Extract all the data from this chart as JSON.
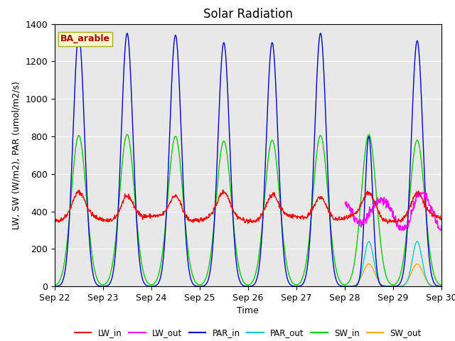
{
  "title": "Solar Radiation",
  "ylabel": "LW, SW (W/m2), PAR (umol/m2/s)",
  "xlabel": "Time",
  "xlim": [
    0,
    8
  ],
  "ylim": [
    0,
    1400
  ],
  "yticks": [
    0,
    200,
    400,
    600,
    800,
    1000,
    1200,
    1400
  ],
  "xtick_positions": [
    0,
    1,
    2,
    3,
    4,
    5,
    6,
    7,
    8
  ],
  "xtick_labels": [
    "Sep 22",
    "Sep 23",
    "Sep 24",
    "Sep 25",
    "Sep 26",
    "Sep 27",
    "Sep 28",
    "Sep 29",
    "Sep 30"
  ],
  "legend_labels": [
    "LW_in",
    "LW_out",
    "PAR_in",
    "PAR_out",
    "SW_in",
    "SW_out"
  ],
  "legend_colors": [
    "#ff0000",
    "#ff00ff",
    "#0000cc",
    "#00cccc",
    "#00cc00",
    "#ffaa00"
  ],
  "annotation_text": "BA_arable",
  "annotation_color": "#aa0000",
  "annotation_bg": "#ffffcc",
  "background_color": "#e8e8e8",
  "title_fontsize": 12,
  "label_fontsize": 9,
  "tick_fontsize": 9,
  "figsize": [
    6.4,
    4.8
  ],
  "dpi": 100
}
